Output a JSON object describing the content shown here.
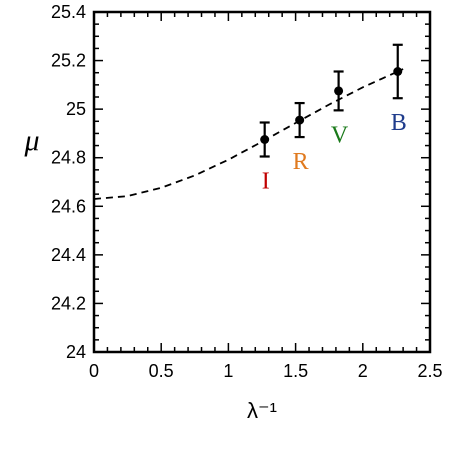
{
  "chart_data": {
    "type": "scatter",
    "title": "",
    "xlabel": "λ⁻¹",
    "ylabel": "μ",
    "xlim": [
      0,
      2.5
    ],
    "ylim": [
      24,
      25.4
    ],
    "grid": false,
    "x_ticks": [
      0,
      0.5,
      1,
      1.5,
      2,
      2.5
    ],
    "x_tick_labels": [
      "0",
      "0.5",
      "1",
      "1.5",
      "2",
      "2.5"
    ],
    "y_ticks": [
      24,
      24.2,
      24.4,
      24.6,
      24.8,
      25,
      25.2,
      25.4
    ],
    "y_tick_labels": [
      "24",
      "24.2",
      "24.4",
      "24.6",
      "24.8",
      "25",
      "25.2",
      "25.4"
    ],
    "points": [
      {
        "label": "I",
        "x": 1.27,
        "y": 24.875,
        "err": 0.07,
        "color": "#c00000"
      },
      {
        "label": "R",
        "x": 1.53,
        "y": 24.955,
        "err": 0.07,
        "color": "#e07a1f"
      },
      {
        "label": "V",
        "x": 1.82,
        "y": 25.075,
        "err": 0.08,
        "color": "#1a7a1a"
      },
      {
        "label": "B",
        "x": 2.26,
        "y": 25.155,
        "err": 0.11,
        "color": "#1f3c8c"
      }
    ],
    "fit_curve": {
      "style": "dashed",
      "x": [
        0,
        0.25,
        0.5,
        0.75,
        1,
        1.25,
        1.5,
        1.75,
        2,
        2.3
      ],
      "y": [
        24.63,
        24.642,
        24.676,
        24.727,
        24.792,
        24.866,
        24.943,
        25.019,
        25.09,
        25.165
      ]
    }
  }
}
